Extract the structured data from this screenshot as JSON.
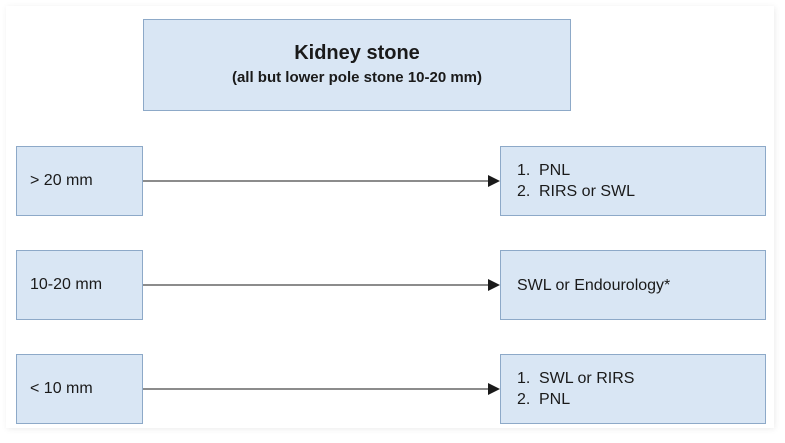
{
  "title": {
    "main": "Kidney stone",
    "sub": "(all but lower pole stone 10-20 mm)"
  },
  "rows": [
    {
      "size": "> 20 mm",
      "options": [
        {
          "num": "1.",
          "text": "PNL"
        },
        {
          "num": "2.",
          "text": "RIRS or SWL"
        }
      ]
    },
    {
      "size": "10-20 mm",
      "options": [
        {
          "num": "",
          "text": "SWL or Endourology*"
        }
      ]
    },
    {
      "size": "< 10 mm",
      "options": [
        {
          "num": "1.",
          "text": "SWL or RIRS"
        },
        {
          "num": "2.",
          "text": "PNL"
        }
      ]
    }
  ],
  "colors": {
    "box_fill": "#d9e6f4",
    "box_border": "#8da9c8",
    "arrow": "#1a1a1a"
  }
}
